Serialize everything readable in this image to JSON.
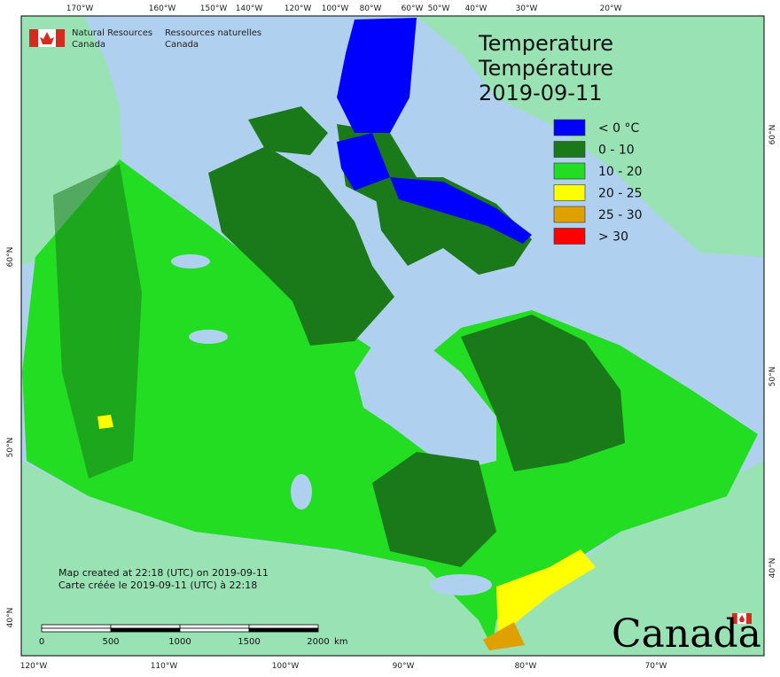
{
  "header": {
    "org_en": [
      "Natural Resources",
      "Canada"
    ],
    "org_fr": [
      "Ressources naturelles",
      "Canada"
    ]
  },
  "title": [
    "Temperature",
    "Température",
    "2019-09-11"
  ],
  "legend": [
    {
      "label": "< 0 °C",
      "color": "#0000ff"
    },
    {
      "label": "0 - 10",
      "color": "#1a7a1a"
    },
    {
      "label": "10 - 20",
      "color": "#22dd22"
    },
    {
      "label": "20 - 25",
      "color": "#ffff00"
    },
    {
      "label": "25 - 30",
      "color": "#e0a000"
    },
    {
      "label": "> 30",
      "color": "#ff0000"
    }
  ],
  "graticule": {
    "top": [
      "170°W",
      "160°W",
      "150°W",
      "140°W",
      "120°W",
      "100°W",
      "80°W",
      "60°W",
      "50°W",
      "40°W",
      "30°W",
      "20°W"
    ],
    "bottom": [
      "120°W",
      "110°W",
      "100°W",
      "90°W",
      "80°W",
      "70°W"
    ],
    "left": [
      "60°N",
      "50°N",
      "40°N"
    ],
    "right": [
      "60°N",
      "50°N",
      "40°N"
    ]
  },
  "credits": [
    "Map created at 22:18 (UTC) on 2019-09-11",
    "Carte créée le 2019-09-11 (UTC) à 22:18"
  ],
  "scale_bar": {
    "labels": [
      "0",
      "500",
      "1000",
      "1500",
      "2000"
    ],
    "unit": "km"
  },
  "wordmark": "Canada"
}
